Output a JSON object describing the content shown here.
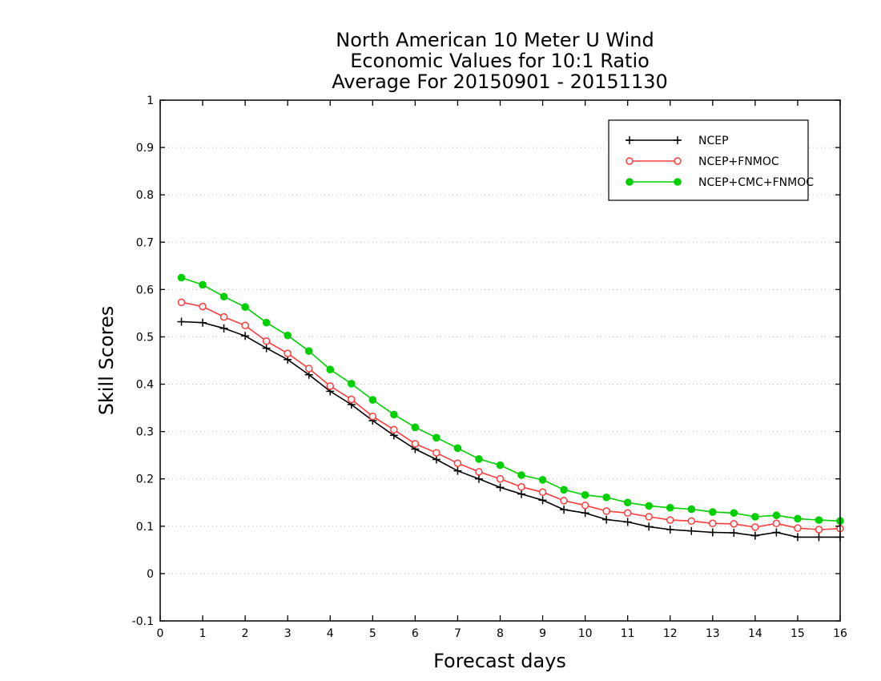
{
  "chart_data": {
    "type": "line",
    "title_lines": [
      "North American 10 Meter U Wind",
      "Economic Values for 10:1 Ratio",
      "Average For 20150901 - 20151130"
    ],
    "xlabel": "Forecast days",
    "ylabel": "Skill Scores",
    "xlim": [
      0,
      16
    ],
    "ylim": [
      -0.1,
      1
    ],
    "x_ticks": [
      0,
      1,
      2,
      3,
      4,
      5,
      6,
      7,
      8,
      9,
      10,
      11,
      12,
      13,
      14,
      15,
      16
    ],
    "x_tick_labels": [
      "0",
      "1",
      "2",
      "3",
      "4",
      "5",
      "6",
      "7",
      "8",
      "9",
      "10",
      "11",
      "12",
      "13",
      "14",
      "15",
      "16"
    ],
    "y_ticks": [
      -0.1,
      0,
      0.1,
      0.2,
      0.3,
      0.4,
      0.5,
      0.6,
      0.7,
      0.8,
      0.9,
      1
    ],
    "y_tick_labels": [
      "-0.1",
      "0",
      "0.1",
      "0.2",
      "0.3",
      "0.4",
      "0.5",
      "0.6",
      "0.7",
      "0.8",
      "0.9",
      "1"
    ],
    "grid": "horizontal dotted",
    "legend_position": "top-right",
    "x": [
      0.5,
      1,
      1.5,
      2,
      2.5,
      3,
      3.5,
      4,
      4.5,
      5,
      5.5,
      6,
      6.5,
      7,
      7.5,
      8,
      8.5,
      9,
      9.5,
      10,
      10.5,
      11,
      11.5,
      12,
      12.5,
      13,
      13.5,
      14,
      14.5,
      15,
      15.5,
      16
    ],
    "series": [
      {
        "name": "NCEP",
        "color": "#000000",
        "marker": "plus",
        "values": [
          0.532,
          0.53,
          0.518,
          0.502,
          0.476,
          0.452,
          0.42,
          0.385,
          0.357,
          0.323,
          0.292,
          0.263,
          0.241,
          0.217,
          0.2,
          0.182,
          0.168,
          0.155,
          0.135,
          0.128,
          0.114,
          0.109,
          0.099,
          0.093,
          0.09,
          0.087,
          0.086,
          0.08,
          0.087,
          0.077,
          0.077,
          0.077
        ]
      },
      {
        "name": "NCEP+FNMOC",
        "color": "#ff3b3b",
        "marker": "open-circle",
        "values": [
          0.573,
          0.564,
          0.542,
          0.524,
          0.491,
          0.465,
          0.433,
          0.396,
          0.368,
          0.332,
          0.304,
          0.274,
          0.255,
          0.233,
          0.215,
          0.2,
          0.183,
          0.172,
          0.154,
          0.144,
          0.132,
          0.128,
          0.12,
          0.113,
          0.111,
          0.106,
          0.105,
          0.098,
          0.106,
          0.096,
          0.093,
          0.095
        ]
      },
      {
        "name": "NCEP+CMC+FNMOC",
        "color": "#00d000",
        "marker": "filled-circle",
        "values": [
          0.625,
          0.61,
          0.585,
          0.563,
          0.53,
          0.503,
          0.47,
          0.431,
          0.401,
          0.367,
          0.336,
          0.309,
          0.287,
          0.265,
          0.242,
          0.229,
          0.208,
          0.198,
          0.177,
          0.166,
          0.161,
          0.15,
          0.143,
          0.139,
          0.136,
          0.13,
          0.128,
          0.12,
          0.123,
          0.116,
          0.113,
          0.111
        ]
      }
    ]
  }
}
